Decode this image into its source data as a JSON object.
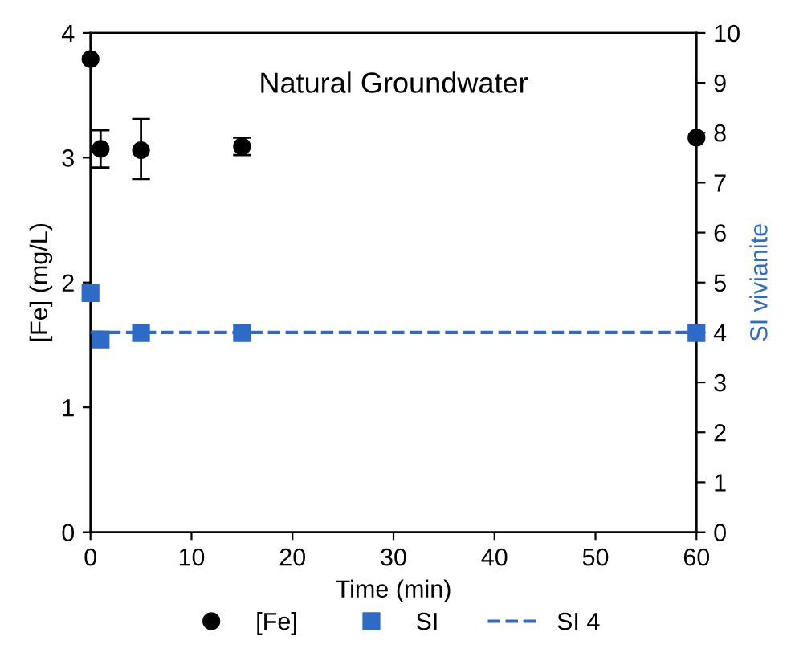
{
  "chart_data": {
    "type": "scatter",
    "title": "Natural Groundwater",
    "xlabel": "Time (min)",
    "ylabel": "[Fe] (mg/L)",
    "y2label": "SI vivianite",
    "xlim": [
      0,
      60
    ],
    "xticks": [
      0,
      10,
      20,
      30,
      40,
      50,
      60
    ],
    "ylim": [
      0,
      4
    ],
    "yticks": [
      0,
      1,
      2,
      3,
      4
    ],
    "y2lim": [
      0,
      10
    ],
    "y2ticks": [
      0,
      1,
      2,
      3,
      4,
      5,
      6,
      7,
      8,
      9,
      10
    ],
    "grid": false,
    "legend": "bottom",
    "series": [
      {
        "name": "[Fe]",
        "marker": "circle",
        "color": "#000000",
        "x": [
          0,
          1,
          5,
          15,
          60
        ],
        "values": [
          3.79,
          3.07,
          3.06,
          3.09,
          3.16
        ],
        "errors": [
          null,
          0.15,
          [
            2.83,
            3.31
          ],
          0.07,
          null
        ]
      },
      {
        "name": "SI",
        "type": "scatter",
        "marker": "square",
        "color": "#2e6bc6",
        "axis": "y2",
        "x": [
          0,
          1,
          5,
          15,
          60
        ],
        "values": [
          4.79,
          3.86,
          3.99,
          3.99,
          3.99
        ]
      },
      {
        "name": "SI 4",
        "type": "line",
        "marker": "none",
        "line_style": "dashed",
        "color": "#2e6bc6",
        "axis": "y2",
        "x": [
          0,
          60
        ],
        "values": [
          4,
          4
        ]
      }
    ]
  }
}
